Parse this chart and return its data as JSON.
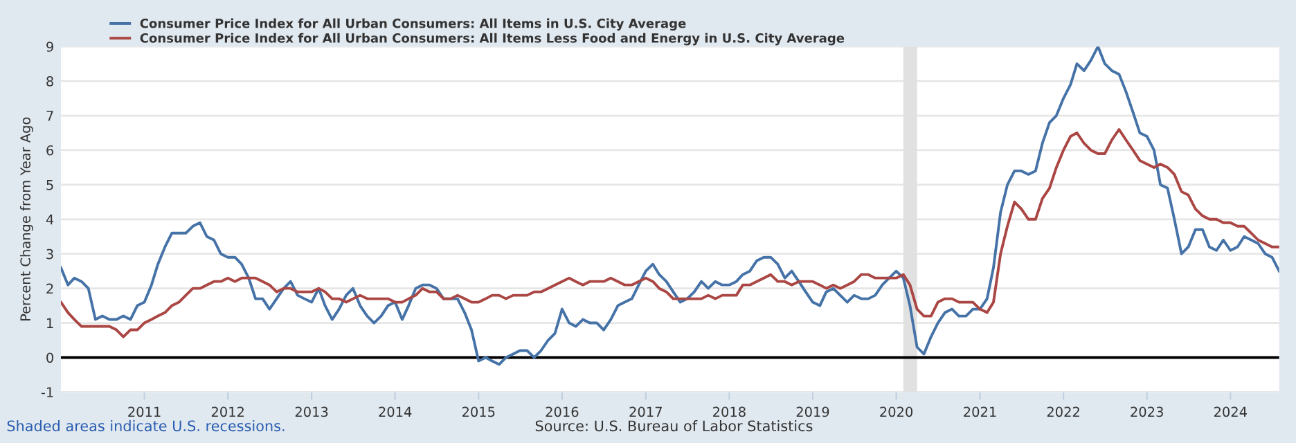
{
  "chart_data": {
    "type": "line",
    "ylabel": "Percent Change from Year Ago",
    "annotations": [
      "Shaded areas indicate U.S. recessions.",
      "Source: U.S. Bureau of Labor Statistics"
    ],
    "x": [
      "2010-01",
      "2010-02",
      "2010-03",
      "2010-04",
      "2010-05",
      "2010-06",
      "2010-07",
      "2010-08",
      "2010-09",
      "2010-10",
      "2010-11",
      "2010-12",
      "2011-01",
      "2011-02",
      "2011-03",
      "2011-04",
      "2011-05",
      "2011-06",
      "2011-07",
      "2011-08",
      "2011-09",
      "2011-10",
      "2011-11",
      "2011-12",
      "2012-01",
      "2012-02",
      "2012-03",
      "2012-04",
      "2012-05",
      "2012-06",
      "2012-07",
      "2012-08",
      "2012-09",
      "2012-10",
      "2012-11",
      "2012-12",
      "2013-01",
      "2013-02",
      "2013-03",
      "2013-04",
      "2013-05",
      "2013-06",
      "2013-07",
      "2013-08",
      "2013-09",
      "2013-10",
      "2013-11",
      "2013-12",
      "2014-01",
      "2014-02",
      "2014-03",
      "2014-04",
      "2014-05",
      "2014-06",
      "2014-07",
      "2014-08",
      "2014-09",
      "2014-10",
      "2014-11",
      "2014-12",
      "2015-01",
      "2015-02",
      "2015-03",
      "2015-04",
      "2015-05",
      "2015-06",
      "2015-07",
      "2015-08",
      "2015-09",
      "2015-10",
      "2015-11",
      "2015-12",
      "2016-01",
      "2016-02",
      "2016-03",
      "2016-04",
      "2016-05",
      "2016-06",
      "2016-07",
      "2016-08",
      "2016-09",
      "2016-10",
      "2016-11",
      "2016-12",
      "2017-01",
      "2017-02",
      "2017-03",
      "2017-04",
      "2017-05",
      "2017-06",
      "2017-07",
      "2017-08",
      "2017-09",
      "2017-10",
      "2017-11",
      "2017-12",
      "2018-01",
      "2018-02",
      "2018-03",
      "2018-04",
      "2018-05",
      "2018-06",
      "2018-07",
      "2018-08",
      "2018-09",
      "2018-10",
      "2018-11",
      "2018-12",
      "2019-01",
      "2019-02",
      "2019-03",
      "2019-04",
      "2019-05",
      "2019-06",
      "2019-07",
      "2019-08",
      "2019-09",
      "2019-10",
      "2019-11",
      "2019-12",
      "2020-01",
      "2020-02",
      "2020-03",
      "2020-04",
      "2020-05",
      "2020-06",
      "2020-07",
      "2020-08",
      "2020-09",
      "2020-10",
      "2020-11",
      "2020-12",
      "2021-01",
      "2021-02",
      "2021-03",
      "2021-04",
      "2021-05",
      "2021-06",
      "2021-07",
      "2021-08",
      "2021-09",
      "2021-10",
      "2021-11",
      "2021-12",
      "2022-01",
      "2022-02",
      "2022-03",
      "2022-04",
      "2022-05",
      "2022-06",
      "2022-07",
      "2022-08",
      "2022-09",
      "2022-10",
      "2022-11",
      "2022-12",
      "2023-01",
      "2023-02",
      "2023-03",
      "2023-04",
      "2023-05",
      "2023-06",
      "2023-07",
      "2023-08",
      "2023-09",
      "2023-10",
      "2023-11",
      "2023-12",
      "2024-01",
      "2024-02",
      "2024-03",
      "2024-04",
      "2024-05",
      "2024-06",
      "2024-07",
      "2024-08"
    ],
    "series": [
      {
        "name": "Consumer Price Index for All Urban Consumers: All Items in U.S. City Average",
        "color": "#4572a7",
        "values": [
          2.6,
          2.1,
          2.3,
          2.2,
          2.0,
          1.1,
          1.2,
          1.1,
          1.1,
          1.2,
          1.1,
          1.5,
          1.6,
          2.1,
          2.7,
          3.2,
          3.6,
          3.6,
          3.6,
          3.8,
          3.9,
          3.5,
          3.4,
          3.0,
          2.9,
          2.9,
          2.7,
          2.3,
          1.7,
          1.7,
          1.4,
          1.7,
          2.0,
          2.2,
          1.8,
          1.7,
          1.6,
          2.0,
          1.5,
          1.1,
          1.4,
          1.8,
          2.0,
          1.5,
          1.2,
          1.0,
          1.2,
          1.5,
          1.6,
          1.1,
          1.5,
          2.0,
          2.1,
          2.1,
          2.0,
          1.7,
          1.7,
          1.7,
          1.3,
          0.8,
          -0.1,
          0.0,
          -0.1,
          -0.2,
          0.0,
          0.1,
          0.2,
          0.2,
          0.0,
          0.2,
          0.5,
          0.7,
          1.4,
          1.0,
          0.9,
          1.1,
          1.0,
          1.0,
          0.8,
          1.1,
          1.5,
          1.6,
          1.7,
          2.1,
          2.5,
          2.7,
          2.4,
          2.2,
          1.9,
          1.6,
          1.7,
          1.9,
          2.2,
          2.0,
          2.2,
          2.1,
          2.1,
          2.2,
          2.4,
          2.5,
          2.8,
          2.9,
          2.9,
          2.7,
          2.3,
          2.5,
          2.2,
          1.9,
          1.6,
          1.5,
          1.9,
          2.0,
          1.8,
          1.6,
          1.8,
          1.7,
          1.7,
          1.8,
          2.1,
          2.3,
          2.5,
          2.3,
          1.5,
          0.3,
          0.1,
          0.6,
          1.0,
          1.3,
          1.4,
          1.2,
          1.2,
          1.4,
          1.4,
          1.7,
          2.6,
          4.2,
          5.0,
          5.4,
          5.4,
          5.3,
          5.4,
          6.2,
          6.8,
          7.0,
          7.5,
          7.9,
          8.5,
          8.3,
          8.6,
          9.0,
          8.5,
          8.3,
          8.2,
          7.7,
          7.1,
          6.5,
          6.4,
          6.0,
          5.0,
          4.9,
          4.0,
          3.0,
          3.2,
          3.7,
          3.7,
          3.2,
          3.1,
          3.4,
          3.1,
          3.2,
          3.5,
          3.4,
          3.3,
          3.0,
          2.9,
          2.5
        ]
      },
      {
        "name": "Consumer Price Index for All Urban Consumers: All Items Less Food and Energy in U.S. City Average",
        "color": "#aa4643",
        "values": [
          1.6,
          1.3,
          1.1,
          0.9,
          0.9,
          0.9,
          0.9,
          0.9,
          0.8,
          0.6,
          0.8,
          0.8,
          1.0,
          1.1,
          1.2,
          1.3,
          1.5,
          1.6,
          1.8,
          2.0,
          2.0,
          2.1,
          2.2,
          2.2,
          2.3,
          2.2,
          2.3,
          2.3,
          2.3,
          2.2,
          2.1,
          1.9,
          2.0,
          2.0,
          1.9,
          1.9,
          1.9,
          2.0,
          1.9,
          1.7,
          1.7,
          1.6,
          1.7,
          1.8,
          1.7,
          1.7,
          1.7,
          1.7,
          1.6,
          1.6,
          1.7,
          1.8,
          2.0,
          1.9,
          1.9,
          1.7,
          1.7,
          1.8,
          1.7,
          1.6,
          1.6,
          1.7,
          1.8,
          1.8,
          1.7,
          1.8,
          1.8,
          1.8,
          1.9,
          1.9,
          2.0,
          2.1,
          2.2,
          2.3,
          2.2,
          2.1,
          2.2,
          2.2,
          2.2,
          2.3,
          2.2,
          2.1,
          2.1,
          2.2,
          2.3,
          2.2,
          2.0,
          1.9,
          1.7,
          1.7,
          1.7,
          1.7,
          1.7,
          1.8,
          1.7,
          1.8,
          1.8,
          1.8,
          2.1,
          2.1,
          2.2,
          2.3,
          2.4,
          2.2,
          2.2,
          2.1,
          2.2,
          2.2,
          2.2,
          2.1,
          2.0,
          2.1,
          2.0,
          2.1,
          2.2,
          2.4,
          2.4,
          2.3,
          2.3,
          2.3,
          2.3,
          2.4,
          2.1,
          1.4,
          1.2,
          1.2,
          1.6,
          1.7,
          1.7,
          1.6,
          1.6,
          1.6,
          1.4,
          1.3,
          1.6,
          3.0,
          3.8,
          4.5,
          4.3,
          4.0,
          4.0,
          4.6,
          4.9,
          5.5,
          6.0,
          6.4,
          6.5,
          6.2,
          6.0,
          5.9,
          5.9,
          6.3,
          6.6,
          6.3,
          6.0,
          5.7,
          5.6,
          5.5,
          5.6,
          5.5,
          5.3,
          4.8,
          4.7,
          4.3,
          4.1,
          4.0,
          4.0,
          3.9,
          3.9,
          3.8,
          3.8,
          3.6,
          3.4,
          3.3,
          3.2,
          3.2
        ]
      }
    ],
    "xlim": [
      "2010-01",
      "2024-08"
    ],
    "xticks": [
      "2011",
      "2012",
      "2013",
      "2014",
      "2015",
      "2016",
      "2017",
      "2018",
      "2019",
      "2020",
      "2021",
      "2022",
      "2023",
      "2024"
    ],
    "ylim": [
      -1,
      9
    ],
    "yticks": [
      -1,
      0,
      1,
      2,
      3,
      4,
      5,
      6,
      7,
      8,
      9
    ],
    "grid": "y",
    "legend": "top left",
    "line_style": "solid",
    "marker": "none",
    "ref_lines": [
      {
        "axis": "y",
        "value": 0,
        "color": "#000000"
      }
    ],
    "bands": [
      {
        "axis": "x",
        "from": "2020-02",
        "to": "2020-04",
        "color": "#e1e1e1"
      }
    ]
  }
}
